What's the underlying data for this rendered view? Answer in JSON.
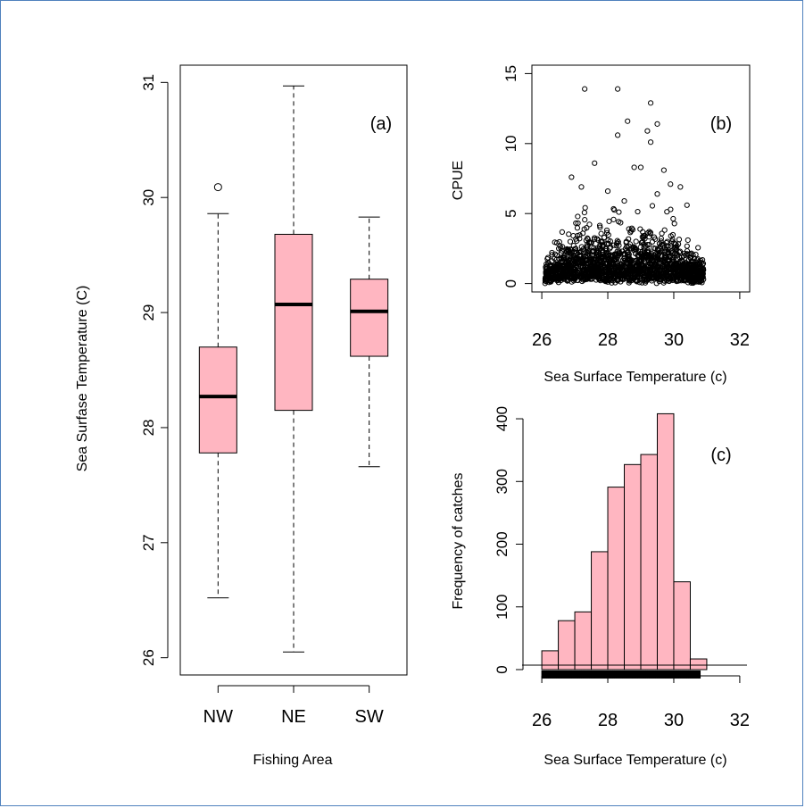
{
  "chart_data": [
    {
      "panel": "a",
      "type": "box",
      "label": "(a)",
      "xlabel": "Fishing Area",
      "ylabel": "Sea Surfase Temperature (C)",
      "ylim": [
        25.85,
        31.15
      ],
      "yticks": [
        26,
        27,
        28,
        29,
        30,
        31
      ],
      "fill": "#ffb6c1",
      "categories": [
        "NW",
        "NE",
        "SW"
      ],
      "boxes": [
        {
          "category": "NW",
          "whisker_low": 26.52,
          "q1": 27.78,
          "median": 28.27,
          "q3": 28.7,
          "whisker_high": 29.86,
          "outliers": [
            30.09
          ]
        },
        {
          "category": "NE",
          "whisker_low": 26.05,
          "q1": 28.15,
          "median": 29.07,
          "q3": 29.68,
          "whisker_high": 30.97,
          "outliers": []
        },
        {
          "category": "SW",
          "whisker_low": 27.66,
          "q1": 28.62,
          "median": 29.01,
          "q3": 29.29,
          "whisker_high": 29.83,
          "outliers": []
        }
      ]
    },
    {
      "panel": "b",
      "type": "scatter",
      "label": "(b)",
      "xlabel": "Sea Surface Temperature (c)",
      "ylabel": "CPUE",
      "xlim": [
        25.7,
        32.3
      ],
      "ylim": [
        -0.6,
        15.6
      ],
      "xticks": [
        26,
        28,
        30,
        32
      ],
      "yticks": [
        0,
        5,
        10,
        15
      ],
      "points": [
        [
          27.3,
          13.9
        ],
        [
          28.3,
          13.9
        ],
        [
          29.3,
          12.9
        ],
        [
          28.3,
          10.6
        ],
        [
          28.6,
          11.6
        ],
        [
          29.2,
          10.9
        ],
        [
          29.5,
          11.4
        ],
        [
          29.3,
          10.1
        ],
        [
          27.6,
          8.6
        ],
        [
          28.8,
          8.3
        ],
        [
          29.0,
          8.3
        ],
        [
          29.7,
          8.1
        ],
        [
          26.9,
          7.6
        ],
        [
          27.2,
          6.9
        ],
        [
          28.0,
          6.6
        ],
        [
          29.9,
          7.1
        ],
        [
          30.2,
          6.9
        ],
        [
          30.4,
          5.6
        ],
        [
          29.5,
          6.4
        ],
        [
          28.5,
          5.9
        ]
      ],
      "bulk": {
        "x_min": 26.1,
        "x_max": 30.9,
        "y_center": 1.2,
        "y_spread": 1.6,
        "count": 1700,
        "seed": 7
      }
    },
    {
      "panel": "c",
      "type": "histogram",
      "label": "(c)",
      "xlabel": "Sea Surface Temperature (c)",
      "ylabel": "Frequency of catches",
      "xlim": [
        25.7,
        32.3
      ],
      "ylim": [
        -10,
        420
      ],
      "xticks": [
        26,
        28,
        30,
        32
      ],
      "yticks": [
        0,
        100,
        200,
        300,
        400
      ],
      "fill": "#ffb6c1",
      "bin_width": 0.5,
      "bins": [
        {
          "x0": 26.0,
          "x1": 26.5,
          "count": 30
        },
        {
          "x0": 26.5,
          "x1": 27.0,
          "count": 78
        },
        {
          "x0": 27.0,
          "x1": 27.5,
          "count": 92
        },
        {
          "x0": 27.5,
          "x1": 28.0,
          "count": 188
        },
        {
          "x0": 28.0,
          "x1": 28.5,
          "count": 291
        },
        {
          "x0": 28.5,
          "x1": 29.0,
          "count": 327
        },
        {
          "x0": 29.0,
          "x1": 29.5,
          "count": 343
        },
        {
          "x0": 29.5,
          "x1": 30.0,
          "count": 408
        },
        {
          "x0": 30.0,
          "x1": 30.5,
          "count": 140
        },
        {
          "x0": 30.5,
          "x1": 31.0,
          "count": 17
        }
      ],
      "rug_range": [
        26.0,
        30.8
      ]
    }
  ]
}
